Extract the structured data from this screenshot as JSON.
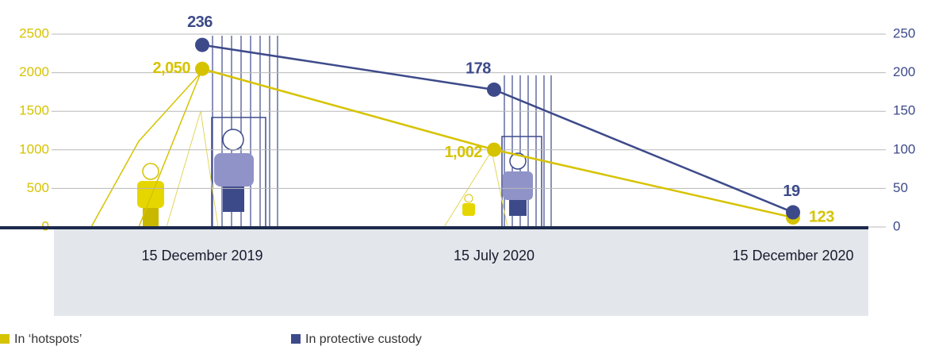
{
  "chart_data": {
    "type": "line",
    "categories": [
      "15 December 2019",
      "15 July 2020",
      "15 December 2020"
    ],
    "series": [
      {
        "name": "In ‘hotspots’",
        "color": "#d6c300",
        "values": [
          2050,
          1002,
          123
        ],
        "value_labels": [
          "2,050",
          "1,002",
          "123"
        ]
      },
      {
        "name": "In protective custody",
        "color": "#3d4a8a",
        "values": [
          236,
          178,
          19
        ],
        "axis": "y2"
      }
    ],
    "ylim": [
      0,
      2500
    ],
    "yticks": [
      0,
      500,
      1000,
      1500,
      2000,
      2500
    ],
    "y2lim": [
      0,
      250
    ],
    "y2ticks": [
      0,
      50,
      100,
      150,
      200,
      250
    ],
    "grid": true
  }
}
